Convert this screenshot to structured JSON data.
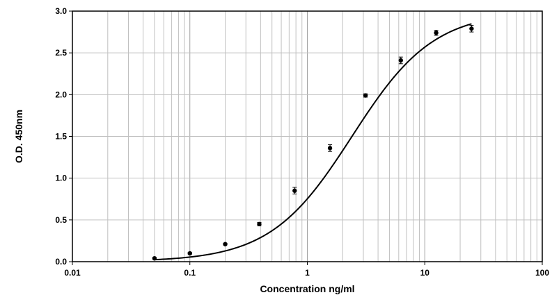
{
  "chart_data": {
    "type": "scatter",
    "title": "",
    "xlabel": "Concentration ng/ml",
    "ylabel": "O.D. 450nm",
    "x_scale": "log",
    "xlim": [
      0.01,
      100
    ],
    "ylim": [
      0,
      3.0
    ],
    "x_ticks": [
      0.01,
      0.1,
      1,
      10,
      100
    ],
    "x_tick_labels": [
      "0.01",
      "0.1",
      "1",
      "10",
      "100"
    ],
    "y_ticks": [
      0,
      0.5,
      1,
      1.5,
      2,
      2.5,
      3
    ],
    "y_tick_labels": [
      "0.0",
      "0.5",
      "1.0",
      "1.5",
      "2.0",
      "2.5",
      "3.0"
    ],
    "grid": true,
    "legend": "none",
    "series": [
      {
        "x": [
          0.05,
          0.1,
          0.2,
          0.39,
          0.78,
          1.56,
          3.13,
          6.25,
          12.5,
          25
        ],
        "y": [
          0.04,
          0.1,
          0.21,
          0.45,
          0.85,
          1.36,
          1.99,
          2.41,
          2.74,
          2.79
        ],
        "error": [
          0.01,
          0.01,
          0.01,
          0.02,
          0.04,
          0.04,
          0.02,
          0.04,
          0.03,
          0.04
        ],
        "fit_curve": "four-parameter logistic"
      }
    ],
    "colors": {
      "points": "#000000",
      "curve": "#000000",
      "grid": "#c0c0c0"
    }
  }
}
